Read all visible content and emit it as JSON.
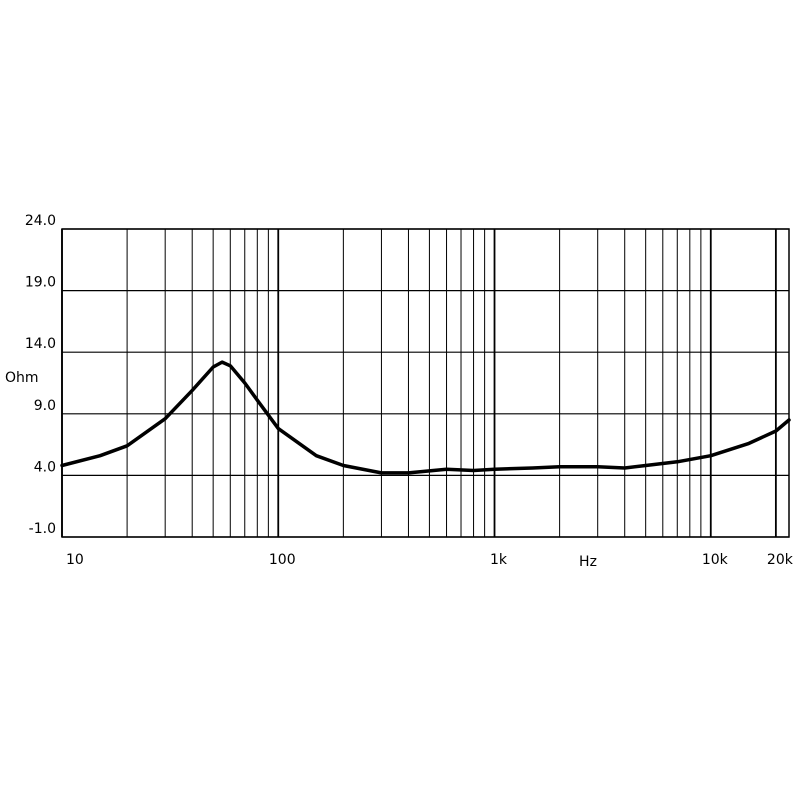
{
  "chart_data": {
    "type": "line",
    "y_label": "Ohm",
    "x_label": "Hz",
    "log_x": true,
    "grid": true,
    "xlim": [
      10,
      23000
    ],
    "ylim": [
      -1,
      24
    ],
    "xticks": [
      10,
      100,
      {
        "value": 1000,
        "label": "1k"
      },
      {
        "value": 10000,
        "label": "10k"
      },
      {
        "value": 20000,
        "label": "20k"
      }
    ],
    "xminorticks": [
      20,
      30,
      40,
      50,
      60,
      70,
      80,
      90,
      200,
      300,
      400,
      500,
      600,
      700,
      800,
      900,
      2000,
      3000,
      4000,
      5000,
      6000,
      7000,
      8000,
      9000
    ],
    "yticks": [
      {
        "value": -1,
        "label": "-1.0"
      },
      {
        "value": 4,
        "label": "4.0"
      },
      {
        "value": 9,
        "label": "9.0"
      },
      {
        "value": 14,
        "label": "14.0"
      },
      {
        "value": 19,
        "label": "19.0"
      },
      {
        "value": 24,
        "label": "24.0"
      }
    ],
    "x": [
      10,
      15,
      20,
      30,
      40,
      50,
      55,
      60,
      70,
      80,
      100,
      150,
      200,
      300,
      400,
      600,
      800,
      1000,
      1500,
      2000,
      3000,
      4000,
      5000,
      7000,
      10000,
      15000,
      20000,
      23000
    ],
    "series": [
      {
        "color": "#000000",
        "values": [
          4.8,
          5.6,
          6.4,
          8.6,
          10.9,
          12.8,
          13.2,
          12.9,
          11.5,
          10.1,
          7.8,
          5.6,
          4.8,
          4.2,
          4.2,
          4.5,
          4.4,
          4.5,
          4.6,
          4.7,
          4.7,
          4.6,
          4.8,
          5.1,
          5.6,
          6.6,
          7.6,
          8.5
        ]
      }
    ]
  }
}
